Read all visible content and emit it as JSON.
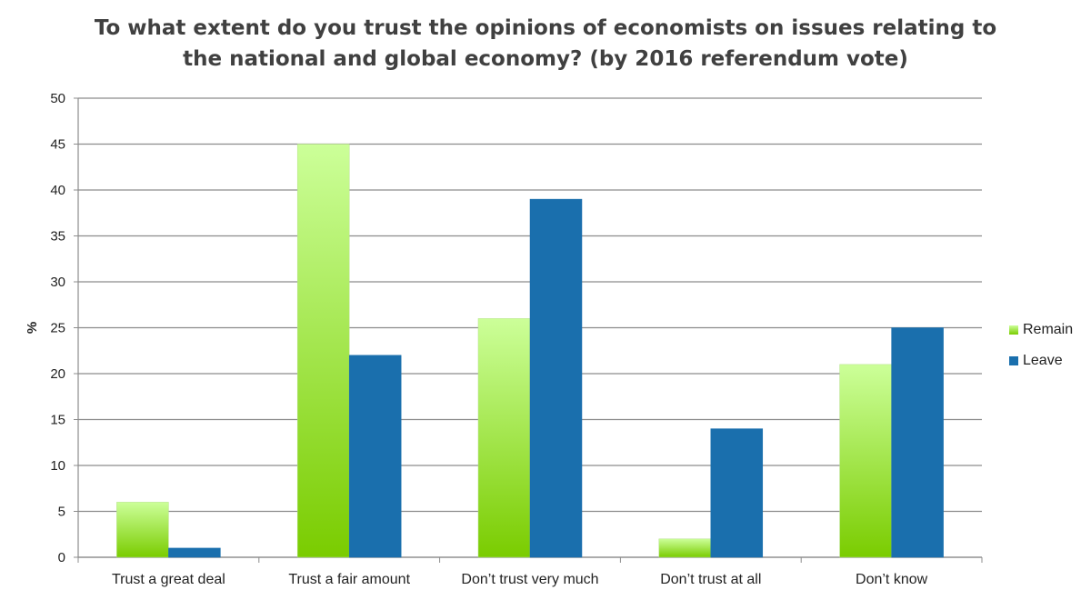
{
  "chart_data": {
    "type": "bar",
    "title_lines": [
      "To what extent do you trust the opinions of economists on issues relating to",
      "the national and global economy? (by 2016 referendum vote)"
    ],
    "xlabel": "",
    "ylabel": "%",
    "ylim": [
      0,
      50
    ],
    "yticks": [
      0,
      5,
      10,
      15,
      20,
      25,
      30,
      35,
      40,
      45,
      50
    ],
    "grid": true,
    "legend_position": "right",
    "categories": [
      "Trust a great deal",
      "Trust a fair amount",
      "Don’t trust very much",
      "Don’t trust at all",
      "Don’t know"
    ],
    "series": [
      {
        "name": "Remain",
        "values": [
          6,
          45,
          26,
          2,
          21
        ],
        "color_top": "#ccff99",
        "color_bottom": "#7acc00"
      },
      {
        "name": "Leave",
        "values": [
          1,
          22,
          39,
          14,
          25
        ],
        "color": "#1a6fad"
      }
    ]
  }
}
